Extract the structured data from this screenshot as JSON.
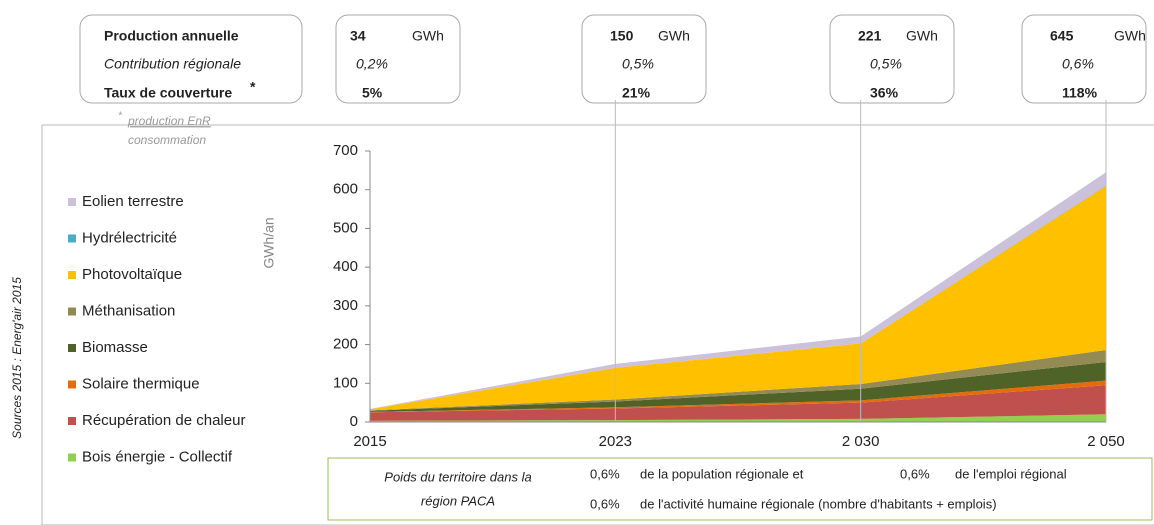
{
  "chart_data": {
    "type": "stacked_area",
    "y_label": "GWh/an",
    "source": "Sources 2015 : Energ'air 2015",
    "categories": [
      "2015",
      "2023",
      "2 030",
      "2 050"
    ],
    "ylim": [
      0,
      700
    ],
    "yticks": [
      0,
      100,
      200,
      300,
      400,
      500,
      600,
      700
    ],
    "series": [
      {
        "name": "Bois énergie - Collectif",
        "color": "#92d050",
        "values": [
          3,
          5,
          8,
          20
        ]
      },
      {
        "name": "Récupération de chaleur",
        "color": "#c0504d",
        "values": [
          22,
          30,
          42,
          75
        ]
      },
      {
        "name": "Solaire thermique",
        "color": "#e46c0a",
        "values": [
          1,
          3,
          6,
          12
        ]
      },
      {
        "name": "Biomasse",
        "color": "#4f6228",
        "values": [
          3,
          15,
          30,
          48
        ]
      },
      {
        "name": "Méthanisation",
        "color": "#948a54",
        "values": [
          1,
          5,
          12,
          31
        ]
      },
      {
        "name": "Photovoltaïque",
        "color": "#ffc000",
        "values": [
          3,
          82,
          105,
          424
        ]
      },
      {
        "name": "Hydrélectricité",
        "color": "#4bacc6",
        "values": [
          0,
          0,
          0,
          1
        ]
      },
      {
        "name": "Eolien terrestre",
        "color": "#ccc1da",
        "values": [
          1,
          10,
          18,
          34
        ]
      }
    ],
    "info_labels": {
      "production": "Production annuelle",
      "contribution": "Contribution régionale",
      "taux": "Taux de couverture",
      "star": "*"
    },
    "footnote": {
      "star": "*",
      "numerator": "production EnR",
      "denominator": "consommation"
    },
    "info_columns": [
      {
        "production": 34,
        "unit": "GWh",
        "contribution": "0,2%",
        "taux": "5%"
      },
      {
        "production": 150,
        "unit": "GWh",
        "contribution": "0,5%",
        "taux": "21%"
      },
      {
        "production": 221,
        "unit": "GWh",
        "contribution": "0,5%",
        "taux": "36%"
      },
      {
        "production": 645,
        "unit": "GWh",
        "contribution": "0,6%",
        "taux": "118%"
      }
    ],
    "weight_box": {
      "title_line1": "Poids du territoire dans la",
      "title_line2": "région PACA",
      "pct1": "0,6%",
      "text1": "de la population régionale et",
      "pct2": "0,6%",
      "text2": "de l'emploi régional",
      "pct3": "0,6%",
      "text3": "de l'activité humaine régionale (nombre d'habitants + emplois)"
    }
  }
}
